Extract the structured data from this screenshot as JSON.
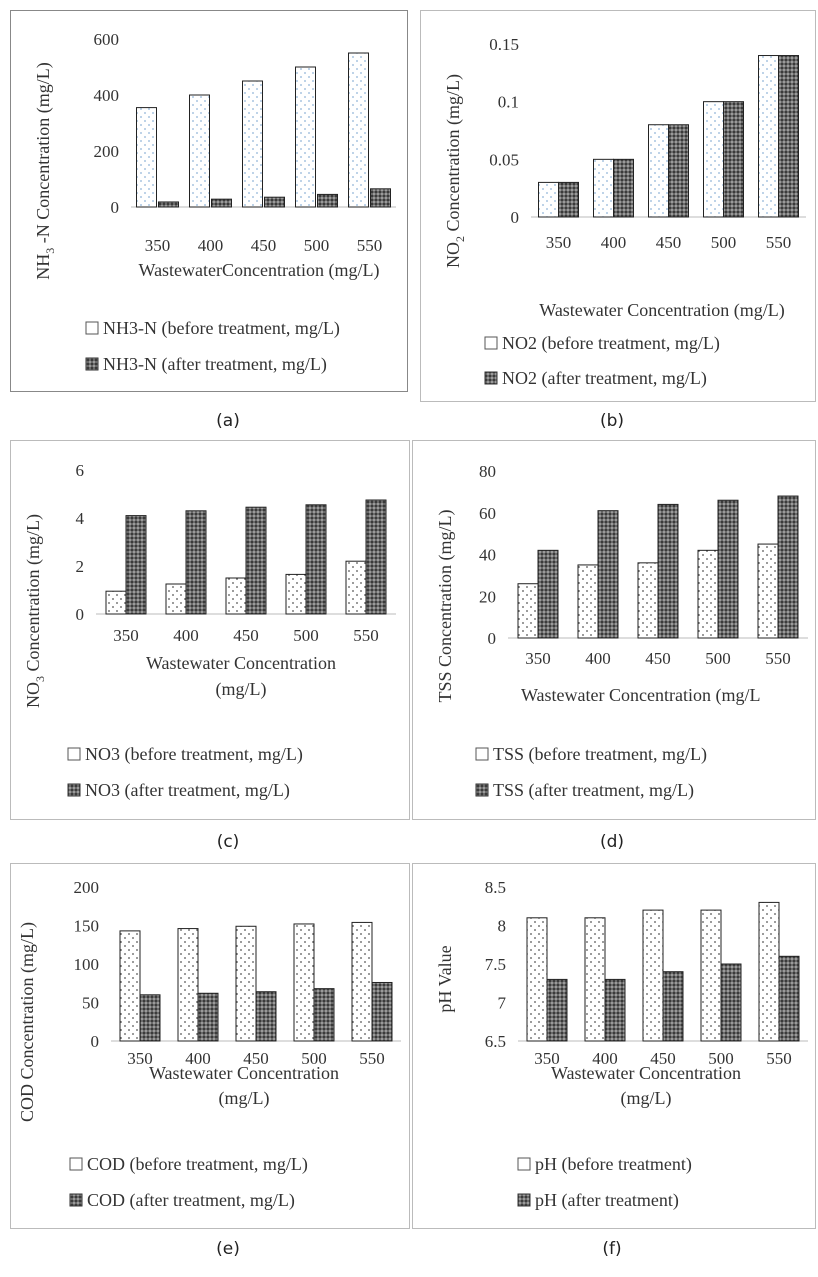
{
  "captions": [
    "(a)",
    "(b)",
    "(c)",
    "(d)",
    "(e)",
    "(f)"
  ],
  "chart_data": [
    {
      "type": "bar",
      "categories": [
        "350",
        "400",
        "450",
        "500",
        "550"
      ],
      "series": [
        {
          "name": "NH3-N (before treatment, mg/L)",
          "values": [
            355,
            400,
            450,
            500,
            550
          ]
        },
        {
          "name": "NH3-N (after treatment, mg/L)",
          "values": [
            18,
            28,
            35,
            45,
            65
          ]
        }
      ],
      "ylim": [
        0,
        600
      ],
      "yticks": [
        "0",
        "200",
        "400",
        "600"
      ],
      "xlabel": "WastewaterConcentration (mg/L)",
      "ylabel_main": "NH",
      "ylabel_sub": "3",
      "ylabel_rest": " -N Concentration (mg/L)",
      "legend_position": "bottom"
    },
    {
      "type": "bar",
      "categories": [
        "350",
        "400",
        "450",
        "500",
        "550"
      ],
      "series": [
        {
          "name": "NO2 (before treatment, mg/L)",
          "values": [
            0.03,
            0.05,
            0.08,
            0.1,
            0.14
          ]
        },
        {
          "name": "NO2 (after treatment, mg/L)",
          "values": [
            0.03,
            0.05,
            0.08,
            0.1,
            0.14
          ]
        }
      ],
      "ylim": [
        0,
        0.15
      ],
      "yticks": [
        "0",
        "0.05",
        "0.1",
        "0.15"
      ],
      "xlabel": "Wastewater Concentration (mg/L)",
      "ylabel_main": "NO",
      "ylabel_sub": "2",
      "ylabel_rest": " Concentration (mg/L)",
      "legend_position": "bottom"
    },
    {
      "type": "bar",
      "categories": [
        "350",
        "400",
        "450",
        "500",
        "550"
      ],
      "series": [
        {
          "name": "NO3 (before treatment, mg/L)",
          "values": [
            0.95,
            1.25,
            1.5,
            1.65,
            2.2
          ]
        },
        {
          "name": "NO3 (after treatment, mg/L)",
          "values": [
            4.1,
            4.3,
            4.45,
            4.55,
            4.75
          ]
        }
      ],
      "ylim": [
        0,
        6
      ],
      "yticks": [
        "0",
        "2",
        "4",
        "6"
      ],
      "xlabel_lines": [
        "Wastewater Concentration",
        "(mg/L)"
      ],
      "ylabel_main": "NO",
      "ylabel_sub": "3",
      "ylabel_rest": "  Concentration (mg/L)",
      "legend_position": "bottom"
    },
    {
      "type": "bar",
      "categories": [
        "350",
        "400",
        "450",
        "500",
        "550"
      ],
      "series": [
        {
          "name": "TSS (before treatment, mg/L)",
          "values": [
            26,
            35,
            36,
            42,
            45
          ]
        },
        {
          "name": "TSS (after treatment, mg/L)",
          "values": [
            42,
            61,
            64,
            66,
            68
          ]
        }
      ],
      "ylim": [
        0,
        80
      ],
      "yticks": [
        "0",
        "20",
        "40",
        "60",
        "80"
      ],
      "xlabel": "Wastewater Concentration (mg/L",
      "ylabel_main": "TSS Concentration (mg/L)",
      "ylabel_sub": "",
      "ylabel_rest": "",
      "legend_position": "bottom"
    },
    {
      "type": "bar",
      "categories": [
        "350",
        "400",
        "450",
        "500",
        "550"
      ],
      "series": [
        {
          "name": "COD (before treatment, mg/L)",
          "values": [
            143,
            146,
            149,
            152,
            154
          ]
        },
        {
          "name": "COD (after treatment, mg/L)",
          "values": [
            60,
            62,
            64,
            68,
            76
          ]
        }
      ],
      "ylim": [
        0,
        200
      ],
      "yticks": [
        "0",
        "50",
        "100",
        "150",
        "200"
      ],
      "xlabel_lines": [
        "Wastewater Concentration",
        "(mg/L)"
      ],
      "ylabel_main": "COD Concentration (mg/L)",
      "ylabel_sub": "",
      "ylabel_rest": "",
      "legend_position": "bottom"
    },
    {
      "type": "bar",
      "categories": [
        "350",
        "400",
        "450",
        "500",
        "550"
      ],
      "series": [
        {
          "name": "pH (before treatment)",
          "values": [
            8.1,
            8.1,
            8.2,
            8.2,
            8.3
          ]
        },
        {
          "name": "pH (after treatment)",
          "values": [
            7.3,
            7.3,
            7.4,
            7.5,
            7.6
          ]
        }
      ],
      "ylim": [
        6.5,
        8.5
      ],
      "yticks": [
        "6.5",
        "7",
        "7.5",
        "8",
        "8.5"
      ],
      "xlabel_lines": [
        "Wastewater Concentration",
        "(mg/L)"
      ],
      "ylabel_main": "pH Value",
      "ylabel_sub": "",
      "ylabel_rest": "",
      "legend_position": "bottom"
    }
  ]
}
